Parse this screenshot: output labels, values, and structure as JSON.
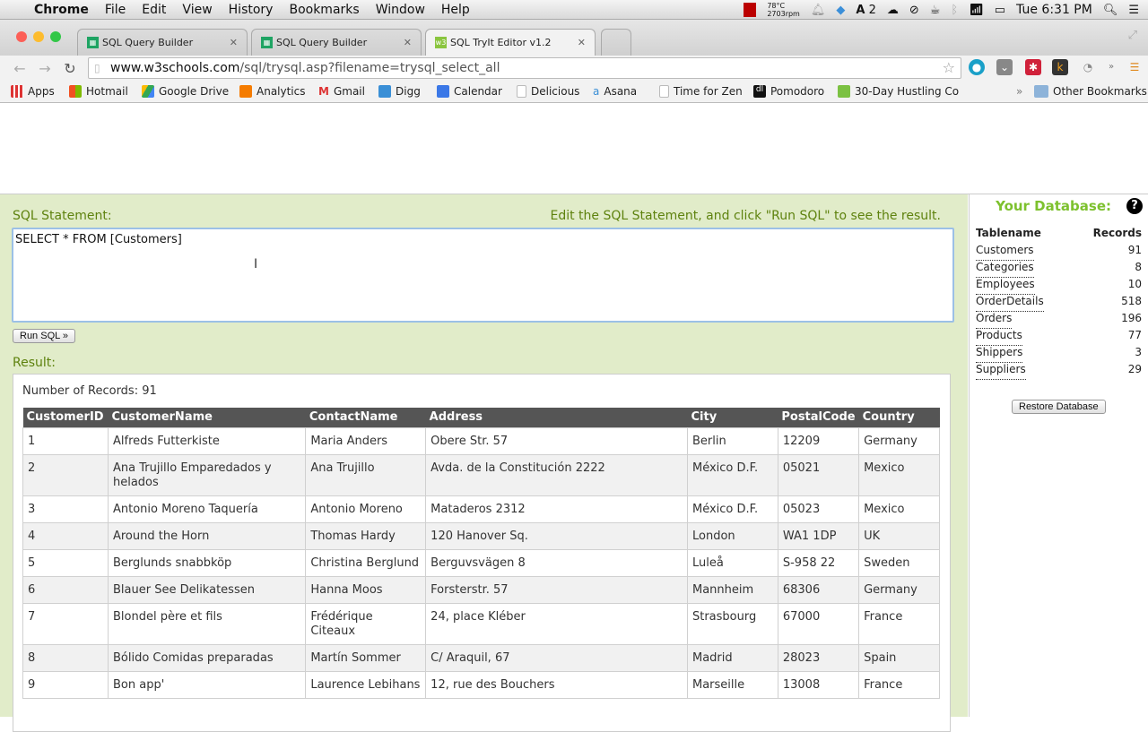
{
  "menubar": {
    "app": "Chrome",
    "items": [
      "File",
      "Edit",
      "View",
      "History",
      "Bookmarks",
      "Window",
      "Help"
    ],
    "temp": "78°C",
    "rpm": "2703rpm",
    "adobe_count": "2",
    "clock": "Tue 6:31 PM"
  },
  "tabs": [
    {
      "label": "SQL Query Builder",
      "icon": "sheets-icon"
    },
    {
      "label": "SQL Query Builder",
      "icon": "sheets-icon"
    },
    {
      "label": "SQL TryIt Editor v1.2",
      "icon": "w3schools-icon",
      "active": true
    }
  ],
  "address": {
    "host": "www.w3schools.com",
    "path": "/sql/trysql.asp?filename=trysql_select_all"
  },
  "bookmarks": [
    "Apps",
    "Hotmail",
    "Google Drive",
    "Analytics",
    "Gmail",
    "Digg",
    "Calendar",
    "Delicious",
    "Asana",
    "Time for Zen",
    "Pomodoro",
    "30-Day Hustling Co"
  ],
  "other_bookmarks": "Other Bookmarks",
  "editor": {
    "label": "SQL Statement:",
    "hint": "Edit the SQL Statement, and click \"Run SQL\" to see the result.",
    "sql": "SELECT * FROM [Customers]",
    "run_label": "Run SQL »",
    "result_label": "Result:",
    "record_count": "Number of Records: 91"
  },
  "table": {
    "columns": [
      "CustomerID",
      "CustomerName",
      "ContactName",
      "Address",
      "City",
      "PostalCode",
      "Country"
    ],
    "rows": [
      [
        "1",
        "Alfreds Futterkiste",
        "Maria Anders",
        "Obere Str. 57",
        "Berlin",
        "12209",
        "Germany"
      ],
      [
        "2",
        "Ana Trujillo Emparedados y helados",
        "Ana Trujillo",
        "Avda. de la Constitución 2222",
        "México D.F.",
        "05021",
        "Mexico"
      ],
      [
        "3",
        "Antonio Moreno Taquería",
        "Antonio Moreno",
        "Mataderos 2312",
        "México D.F.",
        "05023",
        "Mexico"
      ],
      [
        "4",
        "Around the Horn",
        "Thomas Hardy",
        "120 Hanover Sq.",
        "London",
        "WA1 1DP",
        "UK"
      ],
      [
        "5",
        "Berglunds snabbköp",
        "Christina Berglund",
        "Berguvsvägen 8",
        "Luleå",
        "S-958 22",
        "Sweden"
      ],
      [
        "6",
        "Blauer See Delikatessen",
        "Hanna Moos",
        "Forsterstr. 57",
        "Mannheim",
        "68306",
        "Germany"
      ],
      [
        "7",
        "Blondel père et fils",
        "Frédérique Citeaux",
        "24, place Kléber",
        "Strasbourg",
        "67000",
        "France"
      ],
      [
        "8",
        "Bólido Comidas preparadas",
        "Martín Sommer",
        "C/ Araquil, 67",
        "Madrid",
        "28023",
        "Spain"
      ],
      [
        "9",
        "Bon app'",
        "Laurence Lebihans",
        "12, rue des Bouchers",
        "Marseille",
        "13008",
        "France"
      ]
    ]
  },
  "database": {
    "title": "Your Database:",
    "col_table": "Tablename",
    "col_records": "Records",
    "tables": [
      {
        "name": "Customers",
        "records": "91"
      },
      {
        "name": "Categories",
        "records": "8"
      },
      {
        "name": "Employees",
        "records": "10"
      },
      {
        "name": "OrderDetails",
        "records": "518"
      },
      {
        "name": "Orders",
        "records": "196"
      },
      {
        "name": "Products",
        "records": "77"
      },
      {
        "name": "Shippers",
        "records": "3"
      },
      {
        "name": "Suppliers",
        "records": "29"
      }
    ],
    "restore_label": "Restore Database"
  },
  "colors": {
    "panel_bg": "#e1ecc9",
    "label_green": "#5e820e",
    "db_title_green": "#7dc12e",
    "table_header": "#555555"
  }
}
